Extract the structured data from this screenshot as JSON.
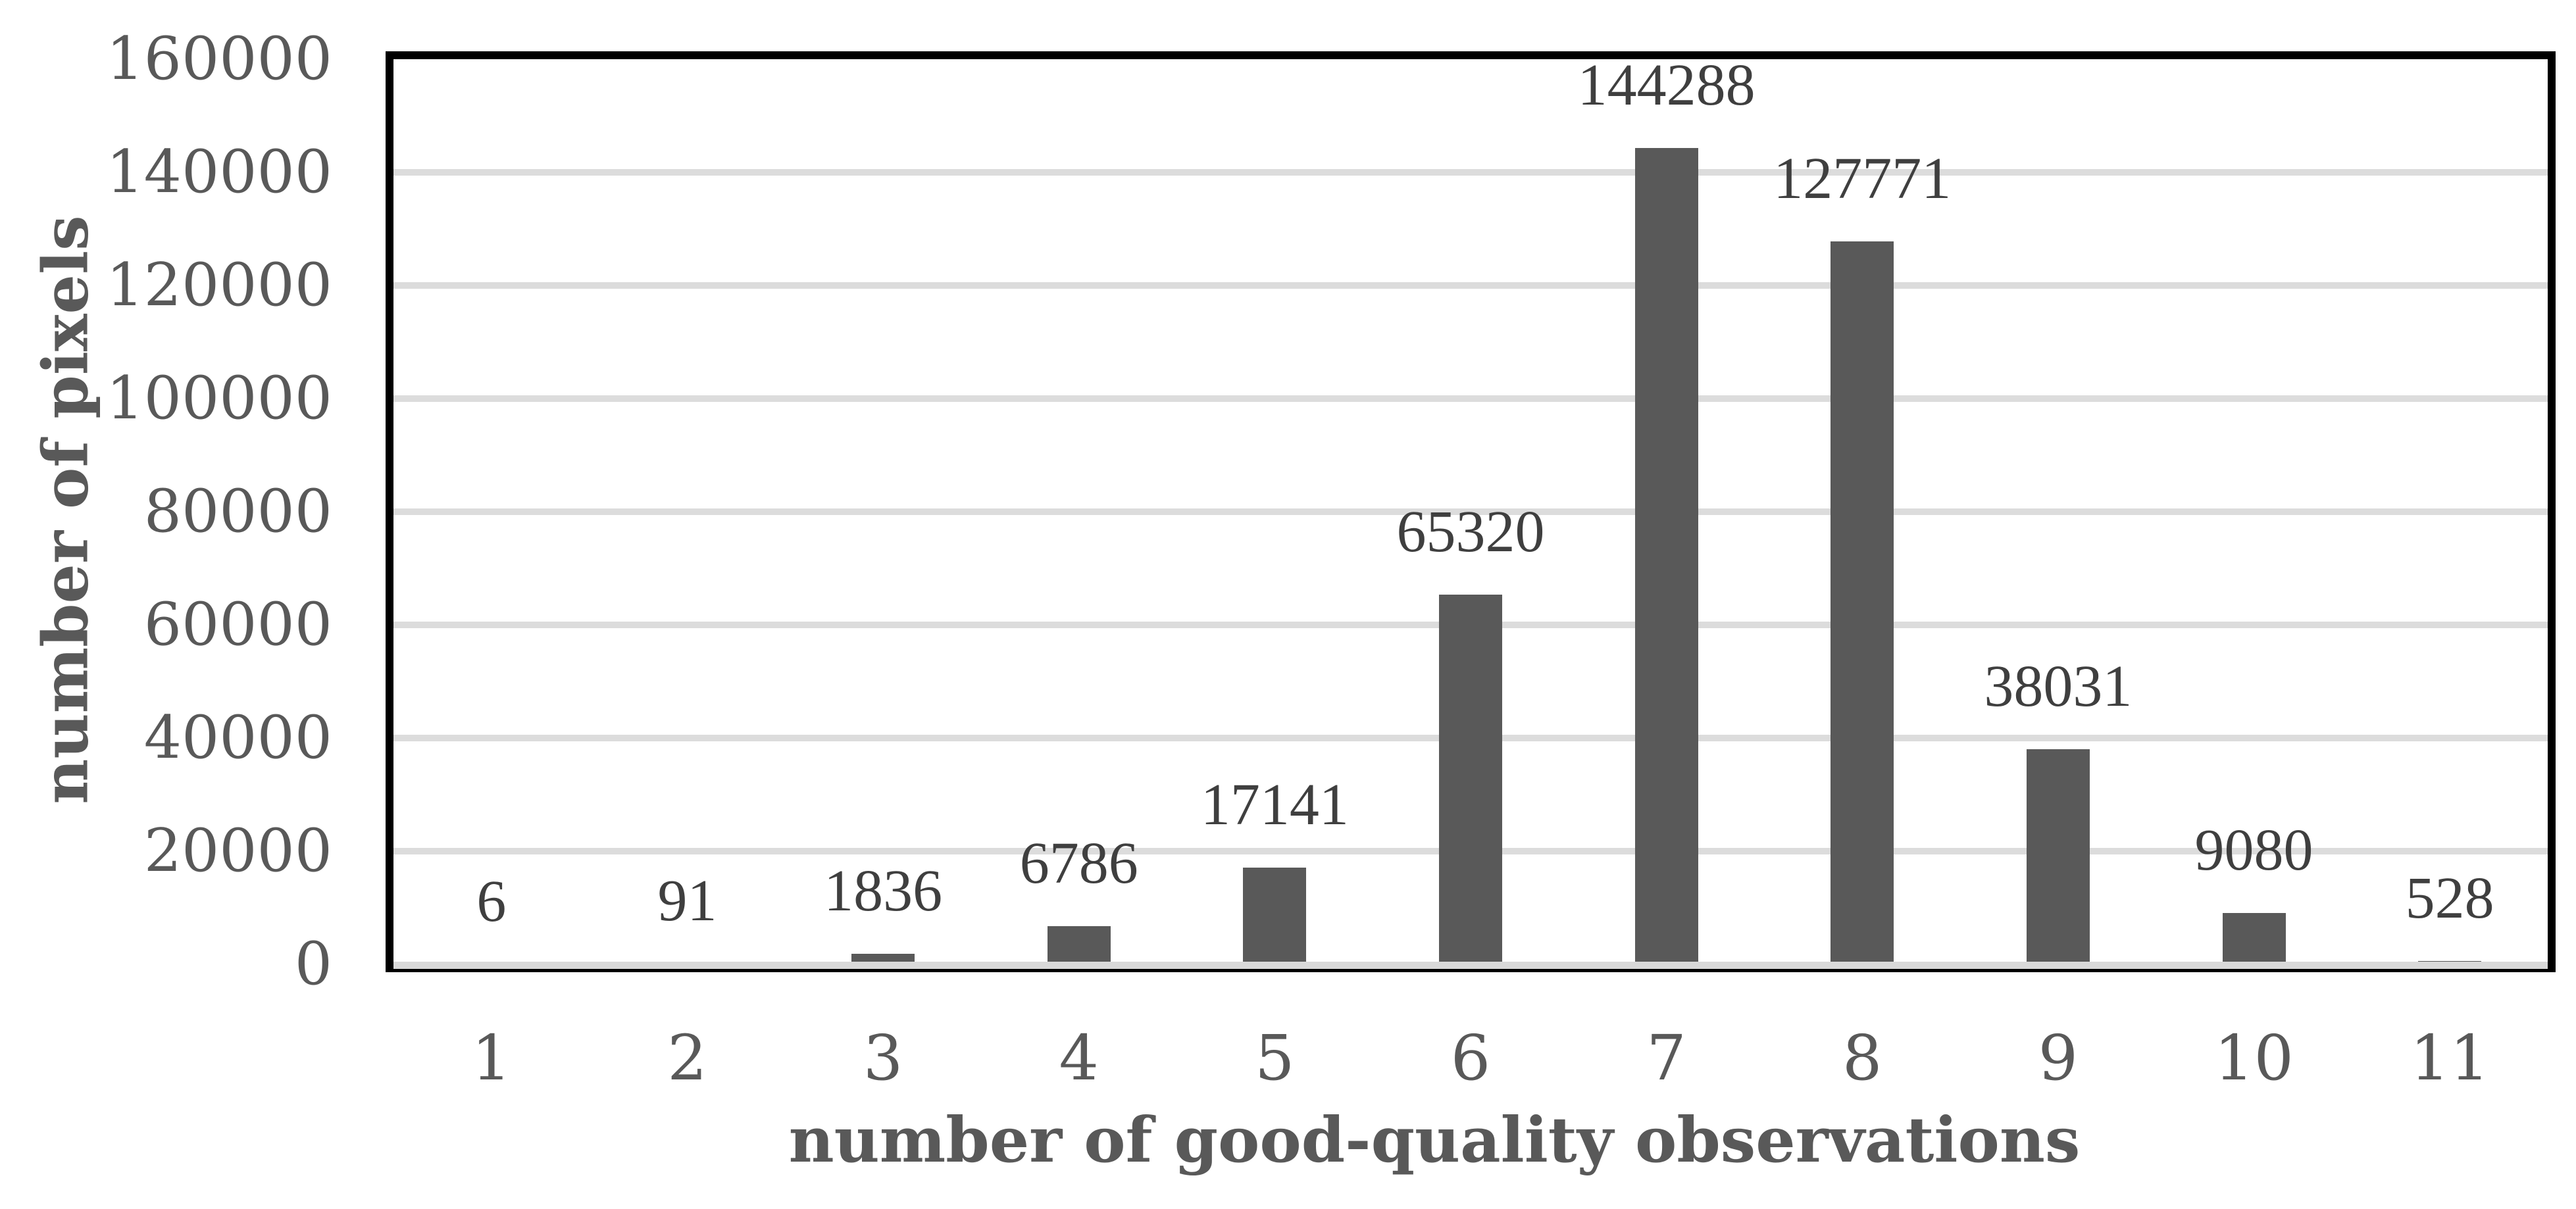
{
  "chart_data": {
    "type": "bar",
    "title": "",
    "xlabel": "number of good-quality observations",
    "ylabel": "number of pixels",
    "categories": [
      "1",
      "2",
      "3",
      "4",
      "5",
      "6",
      "7",
      "8",
      "9",
      "10",
      "11"
    ],
    "values": [
      6,
      91,
      1836,
      6786,
      17141,
      65320,
      144288,
      127771,
      38031,
      9080,
      528
    ],
    "data_labels": [
      "6",
      "91",
      "1836",
      "6786",
      "17141",
      "65320",
      "144288",
      "127771",
      "38031",
      "9080",
      "528"
    ],
    "ylim": [
      0,
      160000
    ],
    "ytick_step": 20000,
    "yticks": [
      "0",
      "20000",
      "40000",
      "60000",
      "80000",
      "100000",
      "120000",
      "140000",
      "160000"
    ],
    "grid": "horizontal-only",
    "legend": "none",
    "colors": {
      "bar": "#595959",
      "gridline": "#dcdcdc",
      "zero_axis_band": "#d9d9d9",
      "plot_border": "#000000",
      "data_label": "#3f3f3f",
      "tick_label": "#595959",
      "axis_title": "#595959",
      "background": "#ffffff"
    }
  }
}
